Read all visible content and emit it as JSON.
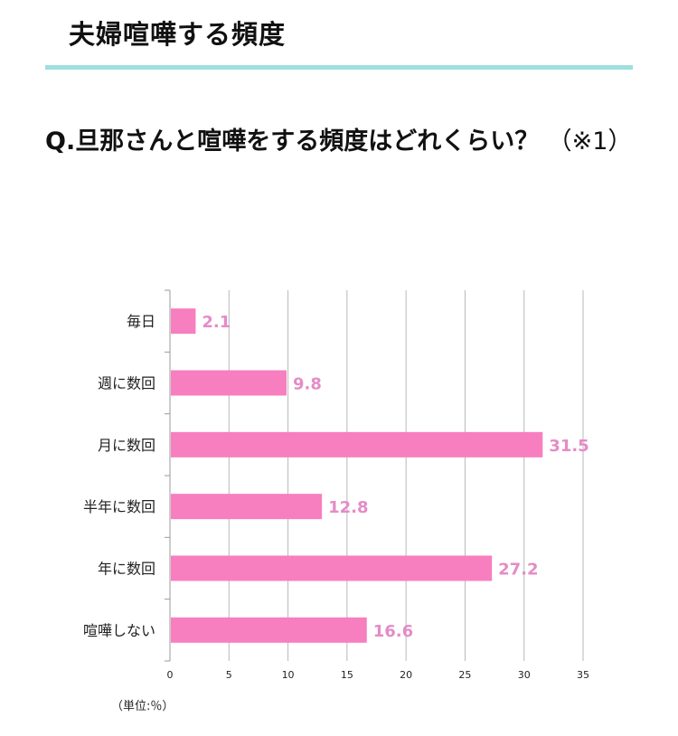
{
  "header": {
    "section_title": "夫婦喧嘩する頻度"
  },
  "question": {
    "text": "Q.旦那さんと喧嘩をする頻度はどれくらい？",
    "note": "（※1）"
  },
  "chart_data": {
    "type": "bar",
    "orientation": "horizontal",
    "categories": [
      "毎日",
      "週に数回",
      "月に数回",
      "半年に数回",
      "年に数回",
      "喧嘩しない"
    ],
    "values": [
      2.1,
      9.8,
      31.5,
      12.8,
      27.2,
      16.6
    ],
    "value_labels": [
      "2.1",
      "9.8",
      "31.5",
      "12.8",
      "27.2",
      "16.6"
    ],
    "xlim": [
      0,
      35
    ],
    "xticks": [
      0,
      5,
      10,
      15,
      20,
      25,
      30,
      35
    ],
    "grid": true,
    "bar_color": "#f77ebf",
    "label_color": "#e48cc6",
    "unit_note": "（単位:％）"
  }
}
